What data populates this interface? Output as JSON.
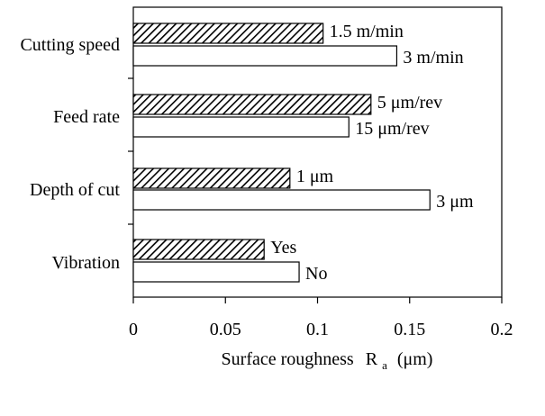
{
  "chart_data": {
    "type": "bar",
    "orientation": "horizontal",
    "xlabel_main": "Surface roughness",
    "xlabel_symbol": "R",
    "xlabel_subscript": "a",
    "xlabel_unit": "(μm)",
    "xlim": [
      0,
      0.2
    ],
    "xticks": [
      "0",
      "0.05",
      "0.1",
      "0.15",
      "0.2"
    ],
    "xtick_values": [
      0,
      0.05,
      0.1,
      0.15,
      0.2
    ],
    "grid": false,
    "legend": "none",
    "categories": [
      "Cutting speed",
      "Feed rate",
      "Depth of cut",
      "Vibration"
    ],
    "bars": [
      {
        "category": "Cutting speed",
        "label": "1.5 m/min",
        "value": 0.103,
        "pattern": "hatched"
      },
      {
        "category": "Cutting speed",
        "label": "3 m/min",
        "value": 0.143,
        "pattern": "white"
      },
      {
        "category": "Feed rate",
        "label": "5 μm/rev",
        "value": 0.129,
        "pattern": "hatched"
      },
      {
        "category": "Feed rate",
        "label": "15 μm/rev",
        "value": 0.117,
        "pattern": "white"
      },
      {
        "category": "Depth of cut",
        "label": "1 μm",
        "value": 0.085,
        "pattern": "hatched"
      },
      {
        "category": "Depth of cut",
        "label": "3 μm",
        "value": 0.161,
        "pattern": "white"
      },
      {
        "category": "Vibration",
        "label": "Yes",
        "value": 0.071,
        "pattern": "hatched"
      },
      {
        "category": "Vibration",
        "label": "No",
        "value": 0.09,
        "pattern": "white"
      }
    ]
  }
}
